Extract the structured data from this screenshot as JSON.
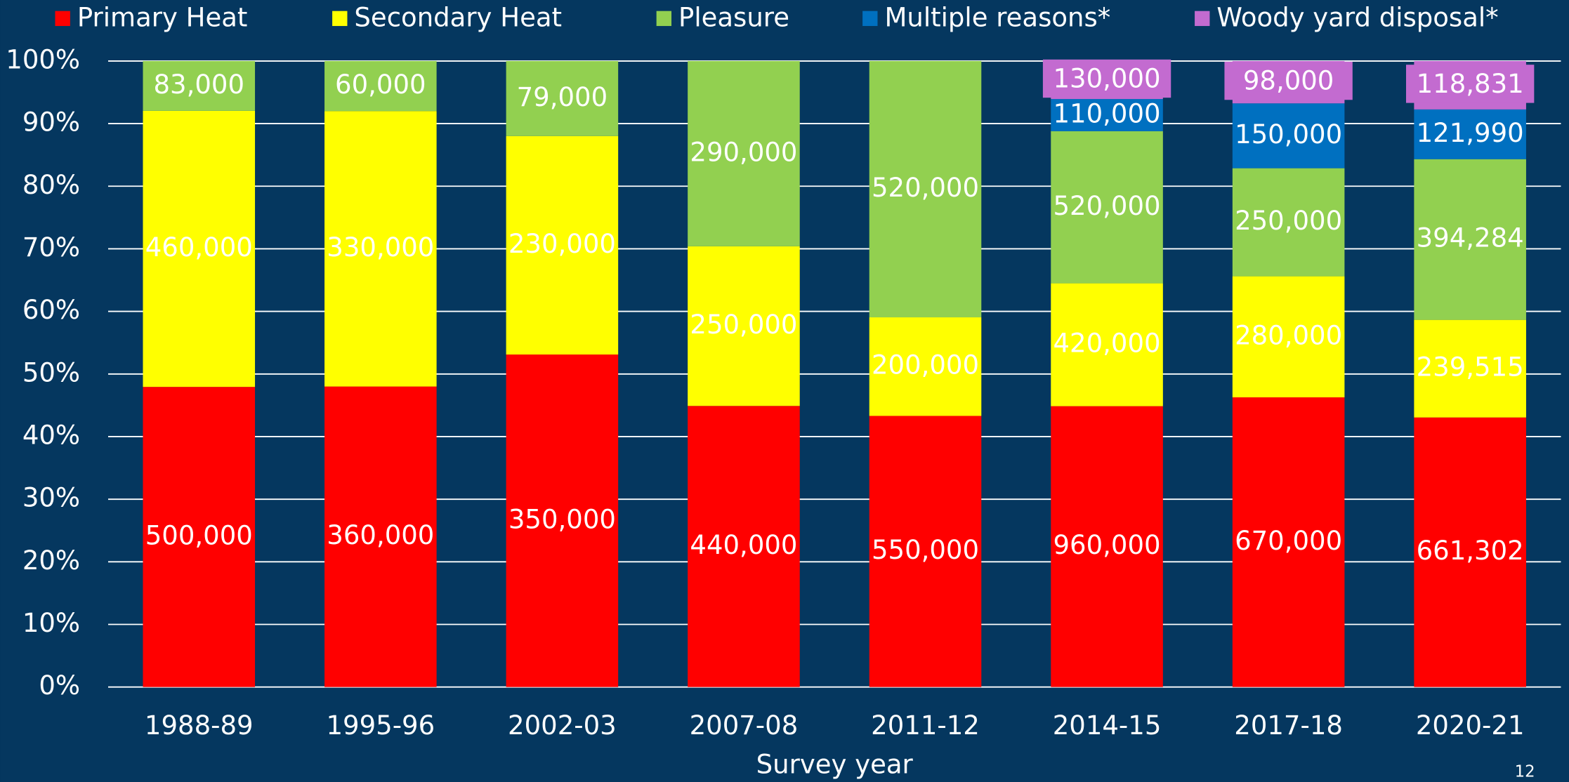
{
  "chart_data": {
    "type": "bar",
    "stacking": "percent",
    "xlabel": "Survey year",
    "categories": [
      "1988-89",
      "1995-96",
      "2002-03",
      "2007-08",
      "2011-12",
      "2014-15",
      "2017-18",
      "2020-21"
    ],
    "series": [
      {
        "name": "Primary Heat",
        "color": "#ff0000",
        "values": [
          500000,
          360000,
          350000,
          440000,
          550000,
          960000,
          670000,
          661302
        ],
        "value_labels": [
          "500,000",
          "360,000",
          "350,000",
          "440,000",
          "550,000",
          "960,000",
          "670,000",
          "661,302"
        ]
      },
      {
        "name": "Secondary Heat",
        "color": "#ffff00",
        "values": [
          460000,
          330000,
          230000,
          250000,
          200000,
          420000,
          280000,
          239515
        ],
        "value_labels": [
          "460,000",
          "330,000",
          "230,000",
          "250,000",
          "200,000",
          "420,000",
          "280,000",
          "239,515"
        ]
      },
      {
        "name": "Pleasure",
        "color": "#92d050",
        "values": [
          83000,
          60000,
          79000,
          290000,
          520000,
          520000,
          250000,
          394284
        ],
        "value_labels": [
          "83,000",
          "60,000",
          "79,000",
          "290,000",
          "520,000",
          "520,000",
          "250,000",
          "394,284"
        ]
      },
      {
        "name": "Multiple reasons*",
        "color": "#0070c0",
        "values": [
          null,
          null,
          null,
          null,
          null,
          110000,
          150000,
          121990
        ],
        "value_labels": [
          null,
          null,
          null,
          null,
          null,
          "110,000",
          "150,000",
          "121,990"
        ]
      },
      {
        "name": "Woody yard disposal*",
        "color": "#c36bd0",
        "values": [
          null,
          null,
          null,
          null,
          null,
          130000,
          98000,
          118831
        ],
        "value_labels": [
          null,
          null,
          null,
          null,
          null,
          "130,000",
          "98,000",
          "118,831"
        ]
      }
    ],
    "ylim": [
      0,
      100
    ],
    "yticks": [
      {
        "value": 0,
        "label": "0%"
      },
      {
        "value": 10,
        "label": "10%"
      },
      {
        "value": 20,
        "label": "20%"
      },
      {
        "value": 30,
        "label": "30%"
      },
      {
        "value": 40,
        "label": "40%"
      },
      {
        "value": 50,
        "label": "50%"
      },
      {
        "value": 60,
        "label": "60%"
      },
      {
        "value": 70,
        "label": "70%"
      },
      {
        "value": 80,
        "label": "80%"
      },
      {
        "value": 90,
        "label": "90%"
      },
      {
        "value": 100,
        "label": "100%"
      }
    ],
    "grid": true,
    "legend": "top"
  },
  "page_number": "12"
}
